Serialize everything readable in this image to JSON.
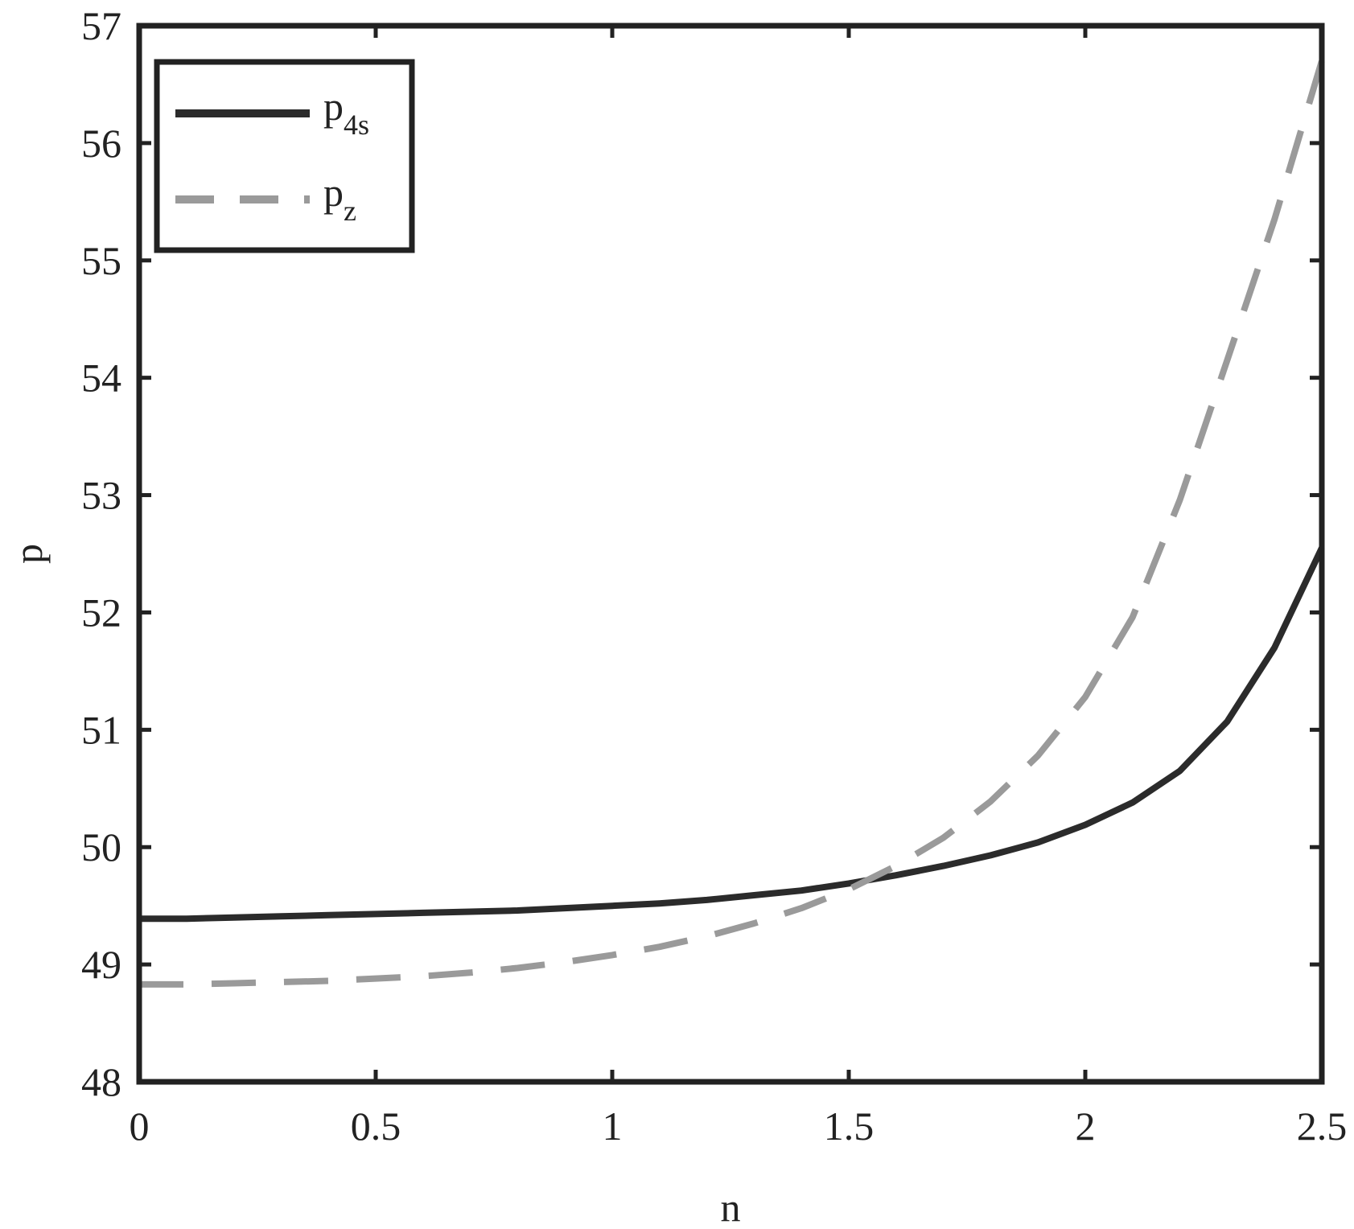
{
  "chart_data": {
    "type": "line",
    "xlabel": "n",
    "ylabel": "p",
    "xlim": [
      0,
      2.5
    ],
    "ylim": [
      48,
      57
    ],
    "xticks": [
      "0",
      "0.5",
      "1",
      "1.5",
      "2",
      "2.5"
    ],
    "xtick_values": [
      0,
      0.5,
      1,
      1.5,
      2,
      2.5
    ],
    "yticks": [
      "48",
      "49",
      "50",
      "51",
      "52",
      "53",
      "54",
      "55",
      "56",
      "57"
    ],
    "ytick_values": [
      48,
      49,
      50,
      51,
      52,
      53,
      54,
      55,
      56,
      57
    ],
    "grid": false,
    "legend_position": "top-left",
    "x": [
      0,
      0.1,
      0.2,
      0.3,
      0.4,
      0.5,
      0.6,
      0.7,
      0.8,
      0.9,
      1.0,
      1.1,
      1.2,
      1.3,
      1.4,
      1.5,
      1.6,
      1.7,
      1.8,
      1.9,
      2.0,
      2.1,
      2.2,
      2.3,
      2.4,
      2.5
    ],
    "series": [
      {
        "name": "p_4s",
        "legend_base": "p",
        "legend_sub": "4s",
        "style": "solid",
        "color": "#2b2b2b",
        "values": [
          49.39,
          49.39,
          49.4,
          49.41,
          49.42,
          49.43,
          49.44,
          49.45,
          49.46,
          49.48,
          49.5,
          49.52,
          49.55,
          49.59,
          49.63,
          49.69,
          49.76,
          49.84,
          49.93,
          50.04,
          50.19,
          50.38,
          50.65,
          51.07,
          51.7,
          52.55
        ]
      },
      {
        "name": "p_z",
        "legend_base": "p",
        "legend_sub": "z",
        "style": "dashed",
        "color": "#9a9a9a",
        "values": [
          48.83,
          48.83,
          48.84,
          48.85,
          48.86,
          48.88,
          48.9,
          48.93,
          48.97,
          49.02,
          49.08,
          49.15,
          49.24,
          49.35,
          49.48,
          49.64,
          49.84,
          50.08,
          50.39,
          50.78,
          51.28,
          51.96,
          52.96,
          54.15,
          55.35,
          56.7
        ]
      }
    ]
  }
}
